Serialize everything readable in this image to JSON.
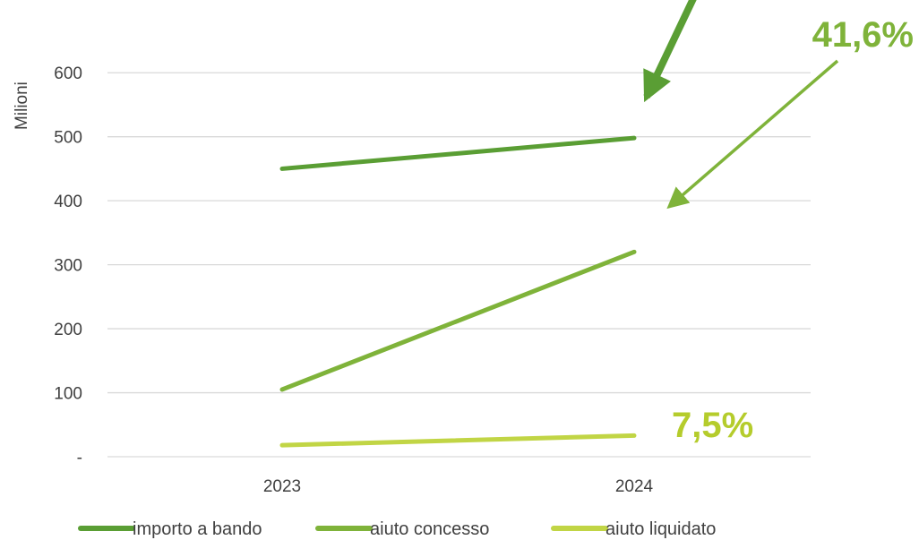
{
  "chart_data": {
    "type": "line",
    "categories": [
      "2023",
      "2024"
    ],
    "series": [
      {
        "name": "importo a bando",
        "values": [
          450,
          498
        ],
        "color": "#5a9e34"
      },
      {
        "name": "aiuto concesso",
        "values": [
          105,
          320
        ],
        "color": "#7fb33a"
      },
      {
        "name": "aiuto liquidato",
        "values": [
          18,
          33
        ],
        "color": "#c1d545"
      }
    ],
    "ylabel": "Milioni",
    "ylim": [
      0,
      650
    ],
    "yticks": [
      {
        "value": 0,
        "label": "-"
      },
      {
        "value": 100,
        "label": "100"
      },
      {
        "value": 200,
        "label": "200"
      },
      {
        "value": 300,
        "label": "300"
      },
      {
        "value": 400,
        "label": "400"
      },
      {
        "value": 500,
        "label": "500"
      },
      {
        "value": 600,
        "label": "600"
      }
    ],
    "grid": true,
    "legend_position": "bottom",
    "annotations": [
      {
        "text": "41,6%",
        "color": "#7fb33a"
      },
      {
        "text": "7,5%",
        "color": "#b5cc2c"
      }
    ]
  }
}
